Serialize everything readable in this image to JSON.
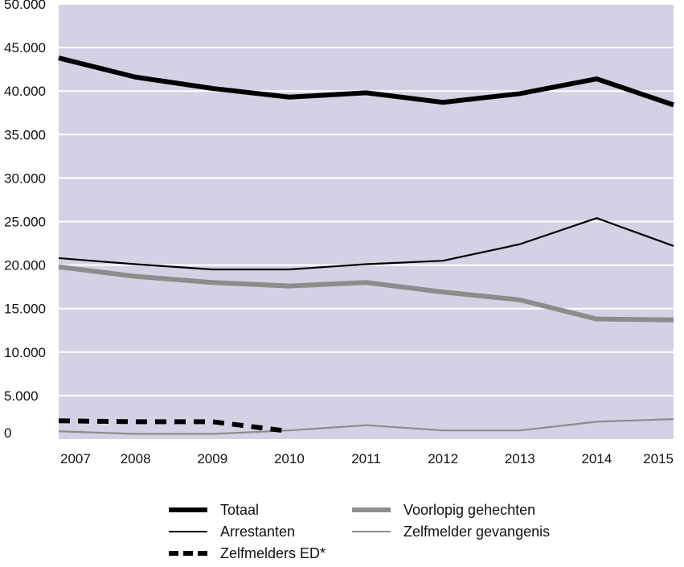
{
  "chart_data": {
    "type": "line",
    "categories": [
      "2007",
      "2008",
      "2009",
      "2010",
      "2011",
      "2012",
      "2013",
      "2014",
      "2015"
    ],
    "ylim": [
      0,
      50000
    ],
    "y_ticks": [
      "0",
      "5.000",
      "10.000",
      "15.000",
      "20.000",
      "25.000",
      "30.000",
      "35.000",
      "40.000",
      "45.000",
      "50.000"
    ],
    "grid": true,
    "legend_position": "bottom",
    "plot_background": "#d5d0e4",
    "series": [
      {
        "name": "Totaal",
        "values": [
          43800,
          41600,
          40300,
          39300,
          39800,
          38700,
          39700,
          41400,
          38400
        ],
        "color": "#000000",
        "style": "thick"
      },
      {
        "name": "Arrestanten",
        "values": [
          20800,
          20100,
          19500,
          19500,
          20100,
          20500,
          22400,
          25400,
          22200
        ],
        "color": "#000000",
        "style": "thin"
      },
      {
        "name": "Zelfmelders ED*",
        "values": [
          2100,
          2000,
          2000,
          900,
          null,
          null,
          null,
          null,
          null
        ],
        "color": "#000000",
        "style": "dashed"
      },
      {
        "name": "Voorlopig gehechten",
        "values": [
          19800,
          18700,
          18000,
          17600,
          18000,
          16900,
          16000,
          13800,
          13700
        ],
        "color": "#8c8c8c",
        "style": "thick"
      },
      {
        "name": "Zelfmelder gevangenis",
        "values": [
          900,
          600,
          600,
          1000,
          1600,
          1000,
          1000,
          2000,
          2300
        ],
        "color": "#8c8c8c",
        "style": "thin"
      }
    ]
  }
}
